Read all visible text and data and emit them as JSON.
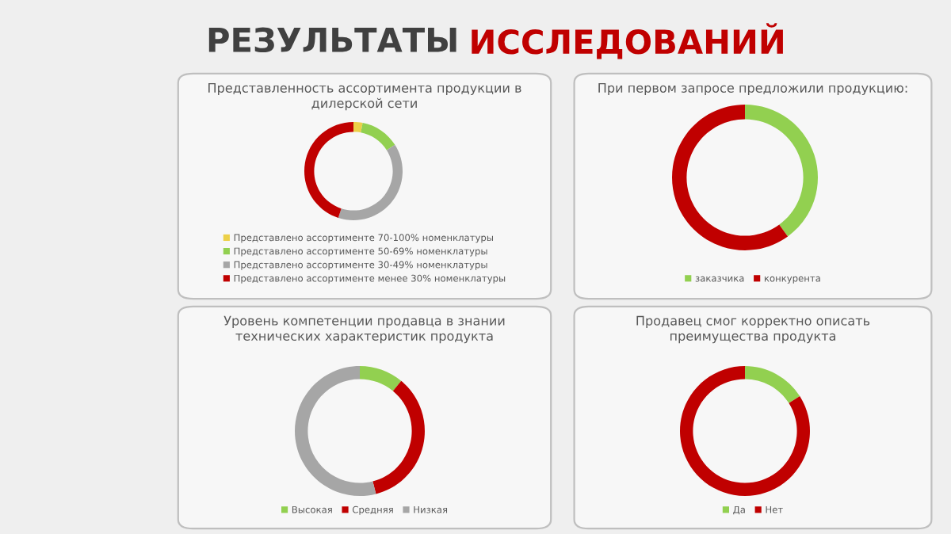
{
  "chart_data": [
    {
      "type": "donut",
      "title": "Представленность ассортимента продукции в дилерской сети",
      "categories": [
        "Представлено ассортименте 70-100% номенклатуры",
        "Представлено ассортименте 50-69% номенклатуры",
        "Представлено ассортименте 30-49% номенклатуры",
        "Представлено ассортименте менее 30% номенклатуры"
      ],
      "values": [
        3,
        13,
        39,
        45
      ],
      "colors": [
        "#ecd048",
        "#92d050",
        "#a6a6a6",
        "#c00000"
      ],
      "legend": "bottom",
      "annotations": [
        "РЕЗУЛЬТАТЫ ИССЛЕДОВАНИЙ"
      ]
    },
    {
      "type": "donut",
      "title": "При первом запросе предложили продукцию:",
      "categories": [
        "заказчика",
        "конкурента"
      ],
      "values": [
        40,
        60
      ],
      "colors": [
        "#92d050",
        "#c00000"
      ],
      "legend": "bottom"
    },
    {
      "type": "donut",
      "title": "Уровень компетенции продавца в знании технических характеристик продукта",
      "categories": [
        "Высокая",
        "Средняя",
        "Низкая"
      ],
      "values": [
        11,
        35,
        54
      ],
      "colors": [
        "#92d050",
        "#c00000",
        "#a6a6a6"
      ],
      "legend": "bottom"
    },
    {
      "type": "donut",
      "title": "Продавец смог корректно описать преимущества продукта",
      "categories": [
        "Да",
        "Нет"
      ],
      "values": [
        16,
        84
      ],
      "colors": [
        "#92d050",
        "#c00000"
      ],
      "legend": "bottom"
    }
  ]
}
